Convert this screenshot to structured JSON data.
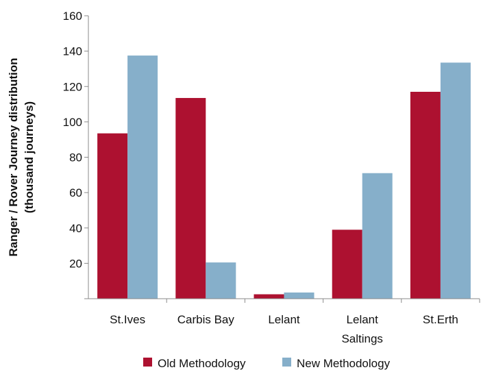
{
  "chart_data": {
    "type": "bar",
    "title": "",
    "xlabel": "",
    "ylabel": [
      "Ranger / Rover Journey distribution",
      "(thousand journeys)"
    ],
    "ylim": [
      0,
      160
    ],
    "yticks": [
      20,
      40,
      60,
      80,
      100,
      120,
      140,
      160
    ],
    "categories": [
      [
        "St.Ives"
      ],
      [
        "Carbis Bay"
      ],
      [
        "Lelant"
      ],
      [
        "Lelant",
        "Saltings"
      ],
      [
        "St.Erth"
      ]
    ],
    "series": [
      {
        "name": "Old Methodology",
        "color": "#ad1130",
        "values": [
          93.5,
          113.5,
          2.5,
          39,
          117
        ]
      },
      {
        "name": "New Methodology",
        "color": "#86afca",
        "values": [
          137.5,
          20.5,
          3.5,
          71,
          133.5
        ]
      }
    ],
    "grid": false,
    "legend_position": "bottom"
  }
}
